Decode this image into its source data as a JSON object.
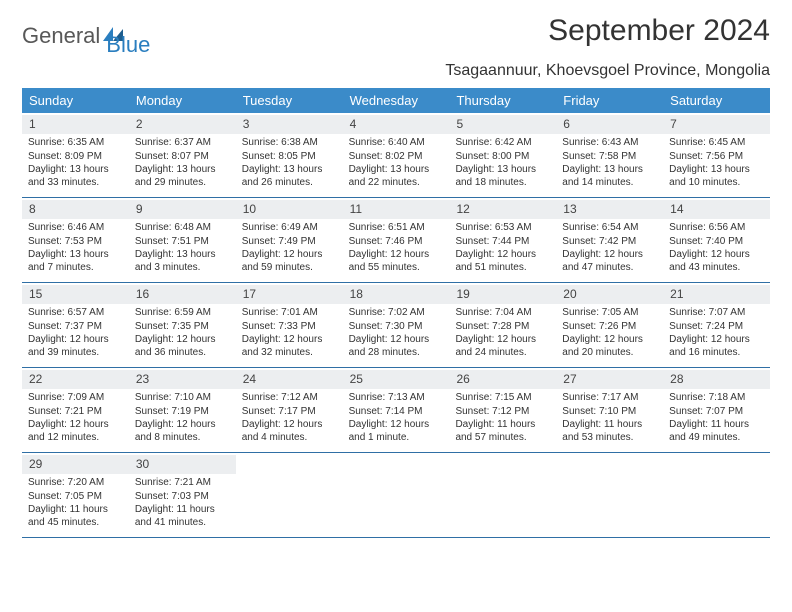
{
  "logo": {
    "text1": "General",
    "text2": "Blue"
  },
  "title": "September 2024",
  "location": "Tsagaannuur, Khoevsgoel Province, Mongolia",
  "colors": {
    "header_bg": "#3b8bc9",
    "header_text": "#ffffff",
    "daynum_bg": "#eceef0",
    "row_border": "#2f6fa5",
    "logo_gray": "#585858",
    "logo_blue": "#2a7ebf"
  },
  "day_headers": [
    "Sunday",
    "Monday",
    "Tuesday",
    "Wednesday",
    "Thursday",
    "Friday",
    "Saturday"
  ],
  "weeks": [
    [
      {
        "n": "1",
        "sr": "6:35 AM",
        "ss": "8:09 PM",
        "dl": "13 hours and 33 minutes."
      },
      {
        "n": "2",
        "sr": "6:37 AM",
        "ss": "8:07 PM",
        "dl": "13 hours and 29 minutes."
      },
      {
        "n": "3",
        "sr": "6:38 AM",
        "ss": "8:05 PM",
        "dl": "13 hours and 26 minutes."
      },
      {
        "n": "4",
        "sr": "6:40 AM",
        "ss": "8:02 PM",
        "dl": "13 hours and 22 minutes."
      },
      {
        "n": "5",
        "sr": "6:42 AM",
        "ss": "8:00 PM",
        "dl": "13 hours and 18 minutes."
      },
      {
        "n": "6",
        "sr": "6:43 AM",
        "ss": "7:58 PM",
        "dl": "13 hours and 14 minutes."
      },
      {
        "n": "7",
        "sr": "6:45 AM",
        "ss": "7:56 PM",
        "dl": "13 hours and 10 minutes."
      }
    ],
    [
      {
        "n": "8",
        "sr": "6:46 AM",
        "ss": "7:53 PM",
        "dl": "13 hours and 7 minutes."
      },
      {
        "n": "9",
        "sr": "6:48 AM",
        "ss": "7:51 PM",
        "dl": "13 hours and 3 minutes."
      },
      {
        "n": "10",
        "sr": "6:49 AM",
        "ss": "7:49 PM",
        "dl": "12 hours and 59 minutes."
      },
      {
        "n": "11",
        "sr": "6:51 AM",
        "ss": "7:46 PM",
        "dl": "12 hours and 55 minutes."
      },
      {
        "n": "12",
        "sr": "6:53 AM",
        "ss": "7:44 PM",
        "dl": "12 hours and 51 minutes."
      },
      {
        "n": "13",
        "sr": "6:54 AM",
        "ss": "7:42 PM",
        "dl": "12 hours and 47 minutes."
      },
      {
        "n": "14",
        "sr": "6:56 AM",
        "ss": "7:40 PM",
        "dl": "12 hours and 43 minutes."
      }
    ],
    [
      {
        "n": "15",
        "sr": "6:57 AM",
        "ss": "7:37 PM",
        "dl": "12 hours and 39 minutes."
      },
      {
        "n": "16",
        "sr": "6:59 AM",
        "ss": "7:35 PM",
        "dl": "12 hours and 36 minutes."
      },
      {
        "n": "17",
        "sr": "7:01 AM",
        "ss": "7:33 PM",
        "dl": "12 hours and 32 minutes."
      },
      {
        "n": "18",
        "sr": "7:02 AM",
        "ss": "7:30 PM",
        "dl": "12 hours and 28 minutes."
      },
      {
        "n": "19",
        "sr": "7:04 AM",
        "ss": "7:28 PM",
        "dl": "12 hours and 24 minutes."
      },
      {
        "n": "20",
        "sr": "7:05 AM",
        "ss": "7:26 PM",
        "dl": "12 hours and 20 minutes."
      },
      {
        "n": "21",
        "sr": "7:07 AM",
        "ss": "7:24 PM",
        "dl": "12 hours and 16 minutes."
      }
    ],
    [
      {
        "n": "22",
        "sr": "7:09 AM",
        "ss": "7:21 PM",
        "dl": "12 hours and 12 minutes."
      },
      {
        "n": "23",
        "sr": "7:10 AM",
        "ss": "7:19 PM",
        "dl": "12 hours and 8 minutes."
      },
      {
        "n": "24",
        "sr": "7:12 AM",
        "ss": "7:17 PM",
        "dl": "12 hours and 4 minutes."
      },
      {
        "n": "25",
        "sr": "7:13 AM",
        "ss": "7:14 PM",
        "dl": "12 hours and 1 minute."
      },
      {
        "n": "26",
        "sr": "7:15 AM",
        "ss": "7:12 PM",
        "dl": "11 hours and 57 minutes."
      },
      {
        "n": "27",
        "sr": "7:17 AM",
        "ss": "7:10 PM",
        "dl": "11 hours and 53 minutes."
      },
      {
        "n": "28",
        "sr": "7:18 AM",
        "ss": "7:07 PM",
        "dl": "11 hours and 49 minutes."
      }
    ],
    [
      {
        "n": "29",
        "sr": "7:20 AM",
        "ss": "7:05 PM",
        "dl": "11 hours and 45 minutes."
      },
      {
        "n": "30",
        "sr": "7:21 AM",
        "ss": "7:03 PM",
        "dl": "11 hours and 41 minutes."
      },
      {
        "empty": true
      },
      {
        "empty": true
      },
      {
        "empty": true
      },
      {
        "empty": true
      },
      {
        "empty": true
      }
    ]
  ],
  "labels": {
    "sunrise": "Sunrise:",
    "sunset": "Sunset:",
    "daylight": "Daylight:"
  }
}
